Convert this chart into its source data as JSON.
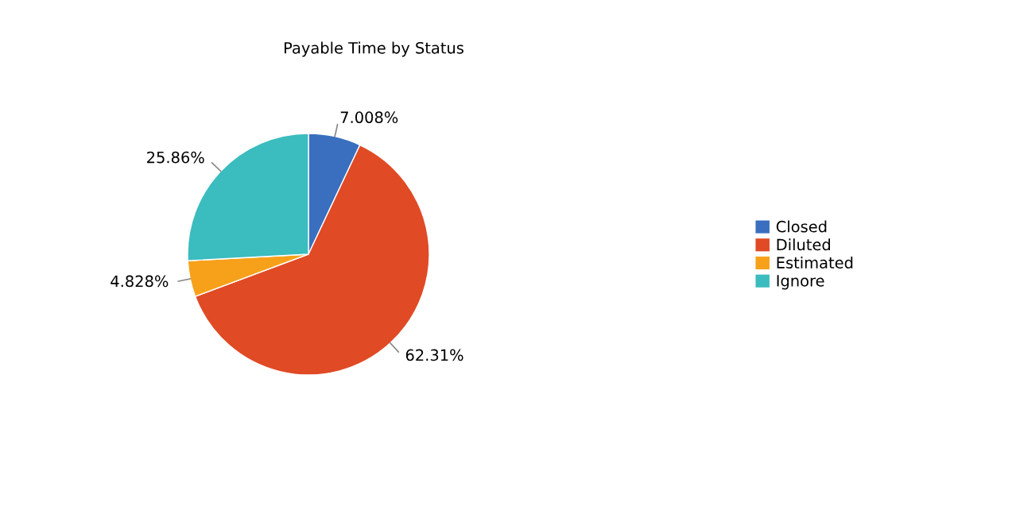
{
  "chart_data": {
    "type": "pie",
    "title": "Payable Time by Status",
    "categories": [
      "Closed",
      "Diluted",
      "Estimated",
      "Ignore"
    ],
    "values": [
      7.008,
      62.31,
      4.828,
      25.86
    ],
    "colors": [
      "#3a6fbf",
      "#e04a25",
      "#f7a11a",
      "#3bbcbf"
    ],
    "value_labels": [
      "7.008%",
      "62.31%",
      "4.828%",
      "25.86%"
    ],
    "legend": "right"
  }
}
